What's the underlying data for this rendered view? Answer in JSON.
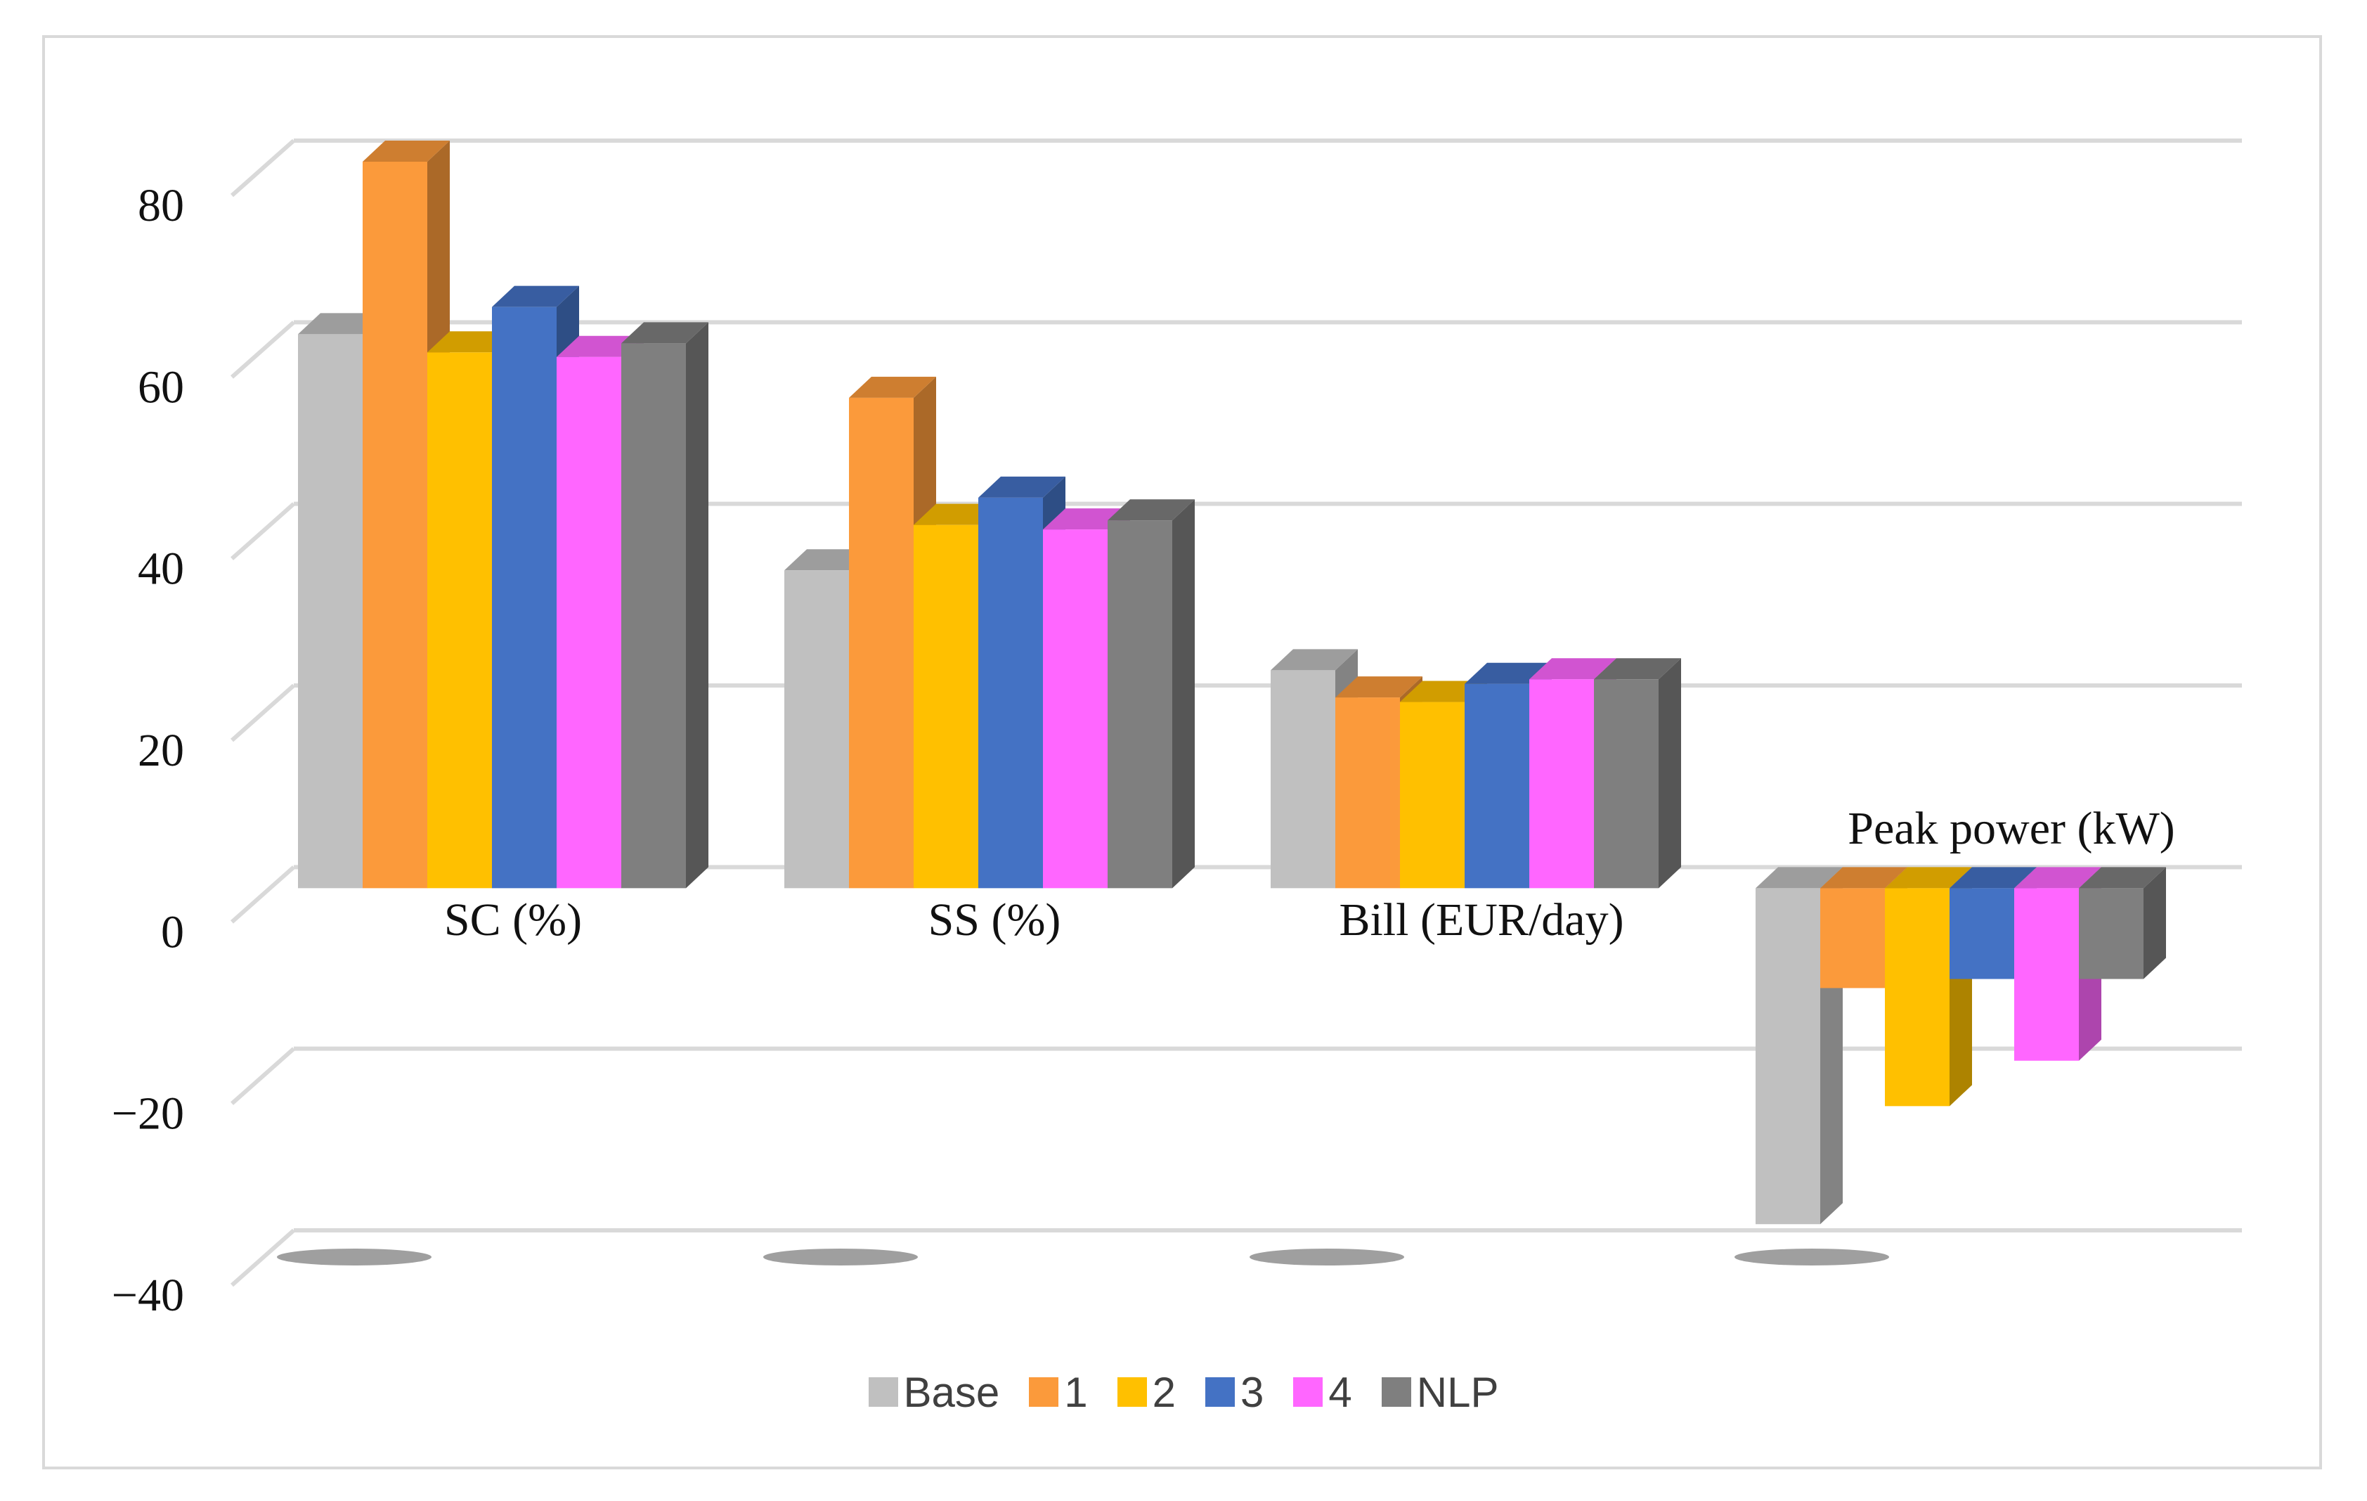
{
  "chart_data": {
    "type": "bar",
    "title": "",
    "xlabel": "",
    "ylabel": "",
    "ylim": [
      -40,
      80
    ],
    "yticks": [
      80,
      60,
      40,
      20,
      0,
      -20,
      -40
    ],
    "ytick_labels": [
      "80",
      "60",
      "40",
      "20",
      "0",
      "−20",
      "−40"
    ],
    "grid": true,
    "legend_position": "bottom",
    "categories": [
      "SC (%)",
      "SS  (%)",
      "Bill (EUR/day)",
      "Peak power (kW)"
    ],
    "series": [
      {
        "name": "Base",
        "color": "#c0c0c0",
        "values": [
          61,
          35,
          24,
          -37
        ]
      },
      {
        "name": "1",
        "color": "#fb9a3b",
        "values": [
          80,
          54,
          21,
          -11
        ]
      },
      {
        "name": "2",
        "color": "#ffc000",
        "values": [
          59,
          40,
          20.5,
          -24
        ]
      },
      {
        "name": "3",
        "color": "#4472c4",
        "values": [
          64,
          43,
          22.5,
          -10
        ]
      },
      {
        "name": "4",
        "color": "#ff66ff",
        "values": [
          58.5,
          39.5,
          23,
          -19
        ]
      },
      {
        "name": "NLP",
        "color": "#7f7f7f",
        "values": [
          60,
          40.5,
          23,
          -10
        ]
      }
    ]
  }
}
